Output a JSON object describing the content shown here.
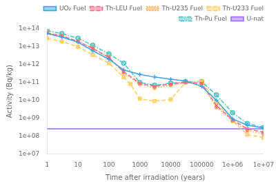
{
  "chart_data": {
    "type": "line",
    "xlabel": "Time after irradiation (years)",
    "ylabel": "Activity (Bq/kg)",
    "log": true,
    "xlim": [
      1,
      10000000.0
    ],
    "ylim": [
      10000000.0,
      100000000000000.0
    ],
    "xticks": [
      1,
      10,
      100,
      1000,
      10000,
      100000,
      {
        "value": 1000000,
        "label": "1e+06"
      },
      {
        "value": 10000000,
        "label": "1e+07"
      }
    ],
    "yticks": [
      {
        "value": 10000000.0,
        "label": "1e+07"
      },
      {
        "value": 100000000.0,
        "label": "1e+08"
      },
      {
        "value": 1000000000.0,
        "label": "1e+09"
      },
      {
        "value": 10000000000.0,
        "label": "1e+10"
      },
      {
        "value": 100000000000.0,
        "label": "1e+11"
      },
      {
        "value": 1000000000000.0,
        "label": "1e+12"
      },
      {
        "value": 10000000000000.0,
        "label": "1e+13"
      },
      {
        "value": 100000000000000.0,
        "label": "1e+14"
      }
    ],
    "grid": false,
    "legend": "upper right",
    "series": [
      {
        "name": "UO₂ Fuel",
        "marker": "plus",
        "line_style": "solid",
        "x": [
          1,
          3,
          10,
          30,
          100,
          300,
          1000,
          3000,
          10000,
          30000,
          100000,
          300000,
          1000000,
          3000000,
          10000000
        ],
        "values": [
          55000000000000.0,
          35000000000000.0,
          18000000000000.0,
          6000000000000.0,
          2000000000000.0,
          500000000000.0,
          280000000000.0,
          200000000000.0,
          150000000000.0,
          120000000000.0,
          60000000000.0,
          10000000000.0,
          900000000.0,
          400000000.0,
          280000000.0
        ]
      },
      {
        "name": "Th-LEU Fuel",
        "marker": "x",
        "line_style": "dashed",
        "x": [
          1,
          3,
          10,
          30,
          100,
          300,
          1000,
          3000,
          10000,
          30000,
          100000,
          300000,
          1000000,
          3000000,
          10000000
        ],
        "values": [
          60000000000000.0,
          40000000000000.0,
          20000000000000.0,
          8000000000000.0,
          2500000000000.0,
          400000000000.0,
          90000000000.0,
          60000000000.0,
          80000000000.0,
          100000000000.0,
          90000000000.0,
          5000000000.0,
          800000000.0,
          250000000.0,
          160000000.0
        ]
      },
      {
        "name": "Th-U235 Fuel",
        "marker": "star",
        "line_style": "dotted",
        "x": [
          1,
          3,
          10,
          30,
          100,
          300,
          1000,
          3000,
          10000,
          30000,
          100000,
          300000,
          1000000,
          3000000,
          10000000
        ],
        "values": [
          62000000000000.0,
          42000000000000.0,
          21000000000000.0,
          8500000000000.0,
          2600000000000.0,
          350000000000.0,
          80000000000.0,
          50000000000.0,
          70000000000.0,
          100000000000.0,
          80000000000.0,
          4000000000.0,
          700000000.0,
          200000000.0,
          130000000.0
        ]
      },
      {
        "name": "Th-U233 Fuel",
        "marker": "square",
        "line_style": "dashed",
        "x": [
          1,
          3,
          10,
          30,
          100,
          300,
          500,
          1000,
          3000,
          10000,
          30000,
          100000,
          300000,
          1000000,
          3000000,
          10000000
        ],
        "values": [
          30000000000000.0,
          20000000000000.0,
          10000000000000.0,
          3500000000000.0,
          1200000000000.0,
          200000000000.0,
          80000000000.0,
          12000000000.0,
          9000000000.0,
          11000000000.0,
          100000000000.0,
          110000000000.0,
          8000000000.0,
          700000000.0,
          120000000.0,
          80000000.0
        ]
      },
      {
        "name": "Th-Pu Fuel",
        "marker": "circle",
        "line_style": "dashdot",
        "x": [
          1,
          3,
          10,
          30,
          100,
          300,
          1000,
          3000,
          10000,
          30000,
          100000,
          300000,
          1000000,
          3000000,
          10000000
        ],
        "values": [
          80000000000000.0,
          55000000000000.0,
          30000000000000.0,
          12000000000000.0,
          4000000000000.0,
          1200000000000.0,
          100000000000.0,
          70000000000.0,
          90000000000.0,
          110000000000.0,
          110000000000.0,
          20000000000.0,
          2000000000.0,
          500000000.0,
          300000000.0
        ]
      },
      {
        "name": "U-nat",
        "line_style": "solid",
        "x": [
          1,
          10000000
        ],
        "values": [
          250000000.0,
          250000000.0
        ]
      }
    ]
  }
}
